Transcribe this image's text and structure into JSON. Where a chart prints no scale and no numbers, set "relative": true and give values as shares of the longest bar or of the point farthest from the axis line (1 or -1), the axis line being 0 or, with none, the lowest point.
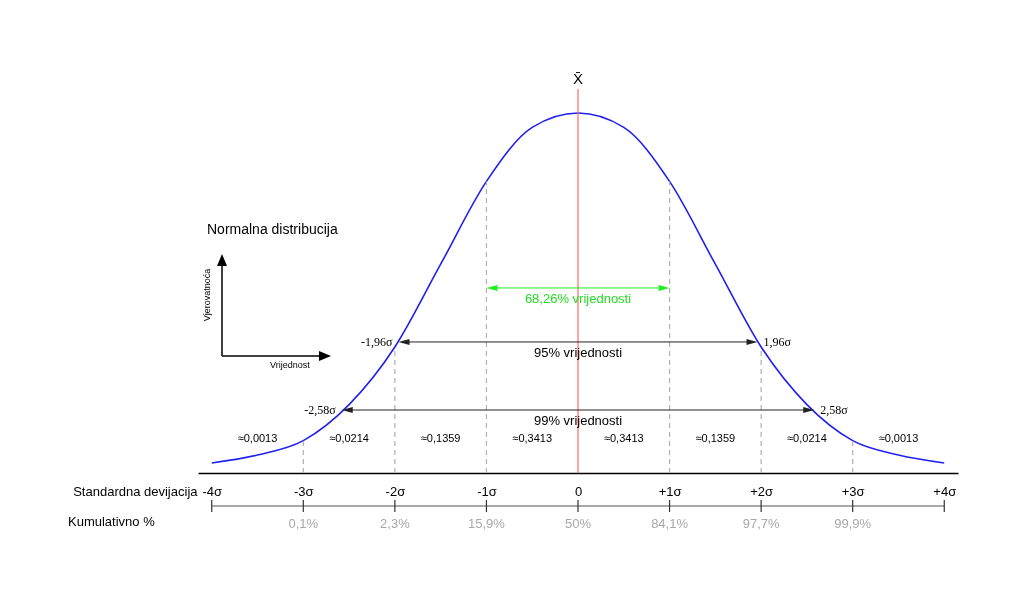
{
  "chart_data": {
    "type": "line",
    "title": "Normalna distribucija",
    "xlabel": "Standardna devijacija",
    "relative": true,
    "series": [
      {
        "color": "#2020ee",
        "x": [
          -4,
          -3.5,
          -3,
          -2.5,
          -2,
          -1.5,
          -1,
          -0.5,
          0,
          0.5,
          1,
          1.5,
          2,
          2.5,
          3,
          3.5,
          4
        ],
        "values": [
          0.028,
          0.05,
          0.09,
          0.19,
          0.35,
          0.58,
          0.81,
          0.96,
          1,
          0.96,
          0.81,
          0.58,
          0.35,
          0.19,
          0.09,
          0.05,
          0.028
        ]
      }
    ],
    "xlim": [
      -4.15,
      4.15
    ],
    "xticks": [
      {
        "value": -4,
        "label": "-4σ"
      },
      {
        "value": -3,
        "label": "-3σ"
      },
      {
        "value": -2,
        "label": "-2σ"
      },
      {
        "value": -1,
        "label": "-1σ"
      },
      0,
      {
        "value": 1,
        "label": "+1σ"
      },
      {
        "value": 2,
        "label": "+2σ"
      },
      {
        "value": 3,
        "label": "+3σ"
      },
      {
        "value": 4,
        "label": "+4σ"
      }
    ],
    "ref_lines": [
      {
        "axis": "x",
        "value": 0,
        "label": "X̄",
        "color": "#ff6666"
      },
      {
        "axis": "x",
        "value": -3,
        "color": "#b0b0b0",
        "line_style": "dashed"
      },
      {
        "axis": "x",
        "value": -2,
        "color": "#b0b0b0",
        "line_style": "dashed"
      },
      {
        "axis": "x",
        "value": -1,
        "color": "#b0b0b0",
        "line_style": "dashed"
      },
      {
        "axis": "x",
        "value": 1,
        "color": "#b0b0b0",
        "line_style": "dashed"
      },
      {
        "axis": "x",
        "value": 2,
        "color": "#b0b0b0",
        "line_style": "dashed"
      },
      {
        "axis": "x",
        "value": 3,
        "color": "#b0b0b0",
        "line_style": "dashed"
      }
    ],
    "annotations": [
      "Vjerovatnoća",
      "Vrijednost",
      "Kumulativno %",
      "0,1%",
      "2,3%",
      "15,9%",
      "50%",
      "84,1%",
      "97,7%",
      "99,9%",
      "68,26% vrijednosti",
      "95% vrijednosti",
      "99% vrijednosti",
      "≈0,0013",
      "≈0,0214",
      "≈0,1359",
      "≈0,3413",
      "≈0,3413",
      "≈0,1359",
      "≈0,0214",
      "≈0,0013",
      {
        "text": "-1,96σ",
        "x": -1.96,
        "y": 0.364
      },
      {
        "text": "1,96σ",
        "x": 1.96,
        "y": 0.364
      },
      {
        "text": "-2,58σ",
        "x": -2.58,
        "y": 0.175
      },
      {
        "text": "2,58σ",
        "x": 2.58,
        "y": 0.175
      }
    ]
  }
}
